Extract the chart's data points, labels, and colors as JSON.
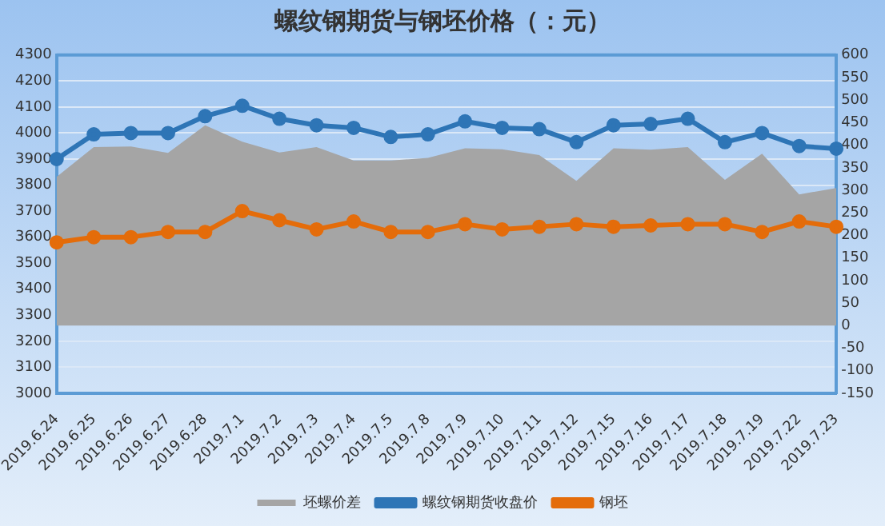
{
  "chart_data": {
    "type": "line",
    "title": "螺纹钢期货与钢坯价格（：元）",
    "categories": [
      "2019.6.24",
      "2019.6.25",
      "2019.6.26",
      "2019.6.27",
      "2019.6.28",
      "2019.7.1",
      "2019.7.2",
      "2019.7.3",
      "2019.7.4",
      "2019.7.5",
      "2019.7.8",
      "2019.7.9",
      "2019.7.10",
      "2019.7.11",
      "2019.7.12",
      "2019.7.15",
      "2019.7.16",
      "2019.7.17",
      "2019.7.18",
      "2019.7.19",
      "2019.7.22",
      "2019.7.23"
    ],
    "series": [
      {
        "name": "坯螺价差",
        "type": "area",
        "axis": "y2",
        "color": "#a5a5a5",
        "values": [
          330,
          396,
          397,
          383,
          444,
          408,
          384,
          396,
          366,
          366,
          372,
          393,
          391,
          378,
          321,
          393,
          390,
          396,
          323,
          381,
          291,
          305
        ]
      },
      {
        "name": "螺纹钢期货收盘价",
        "color": "#2e75b6",
        "marker": "circle",
        "values": [
          3900,
          3995,
          4000,
          4000,
          4065,
          4105,
          4055,
          4030,
          4020,
          3985,
          3995,
          4045,
          4020,
          4015,
          3965,
          4030,
          4035,
          4055,
          3965,
          4000,
          3950,
          3940
        ]
      },
      {
        "name": "钢坯",
        "color": "#e46c0a",
        "marker": "circle",
        "values": [
          3580,
          3600,
          3600,
          3620,
          3620,
          3700,
          3665,
          3630,
          3660,
          3620,
          3620,
          3650,
          3630,
          3640,
          3650,
          3640,
          3645,
          3650,
          3650,
          3620,
          3660,
          3640
        ]
      }
    ],
    "ylim": [
      3000,
      4300
    ],
    "yticks": [
      3000,
      3100,
      3200,
      3300,
      3400,
      3500,
      3600,
      3700,
      3800,
      3900,
      4000,
      4100,
      4200,
      4300
    ],
    "y2lim": [
      -150,
      600
    ],
    "y2ticks": [
      -150,
      -100,
      -50,
      0,
      50,
      100,
      150,
      200,
      250,
      300,
      350,
      400,
      450,
      500,
      550,
      600
    ],
    "grid": "y",
    "legend": "bottom"
  }
}
